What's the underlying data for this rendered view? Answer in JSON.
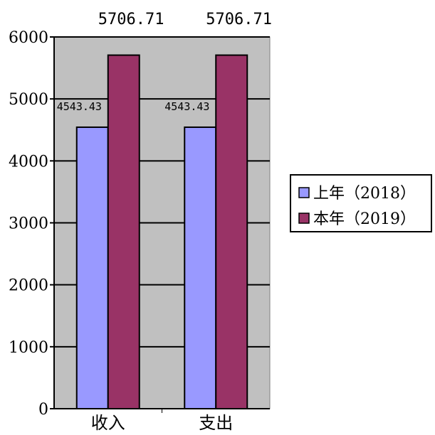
{
  "chart_data": {
    "type": "bar",
    "categories": [
      "收入",
      "支出"
    ],
    "series": [
      {
        "name": "上年（2018）",
        "values": [
          4543.43,
          4543.43
        ],
        "color": "#9999ff"
      },
      {
        "name": "本年（2019）",
        "values": [
          5706.71,
          5706.71
        ],
        "color": "#993366"
      }
    ],
    "data_labels": [
      [
        "4543.43",
        "4543.43"
      ],
      [
        "5706.71",
        "5706.71"
      ]
    ],
    "ylim": [
      0,
      6000
    ],
    "yticks": [
      0,
      1000,
      2000,
      3000,
      4000,
      5000,
      6000
    ],
    "grid": true,
    "plot_background": "#c0c0c0",
    "legend_position": "right"
  }
}
